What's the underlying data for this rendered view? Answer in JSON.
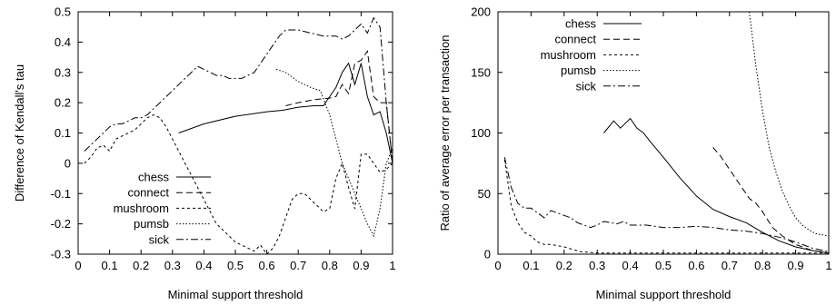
{
  "chart_data": [
    {
      "type": "line",
      "xlabel": "Minimal support threshold",
      "ylabel": "Difference of Kendall's tau",
      "xlim": [
        0,
        1
      ],
      "ylim": [
        -0.3,
        0.5
      ],
      "xticks": [
        0,
        0.1,
        0.2,
        0.3,
        0.4,
        0.5,
        0.6,
        0.7,
        0.8,
        0.9,
        1
      ],
      "xtick_labels": [
        "0",
        "0.1",
        "0.2",
        "0.3",
        "0.4",
        "0.5",
        "0.6",
        "0.7",
        "0.8",
        "0.9",
        "1"
      ],
      "yticks": [
        -0.3,
        -0.2,
        -0.1,
        0,
        0.1,
        0.2,
        0.3,
        0.4,
        0.5
      ],
      "ytick_labels": [
        "-0.3",
        "-0.2",
        "-0.1",
        "0",
        "0.1",
        "0.2",
        "0.3",
        "0.4",
        "0.5"
      ],
      "grid": false,
      "legend_position": "bottom-left",
      "series": [
        {
          "name": "chess",
          "dash": "solid",
          "x": [
            0.32,
            0.4,
            0.5,
            0.6,
            0.65,
            0.7,
            0.75,
            0.78,
            0.8,
            0.82,
            0.84,
            0.86,
            0.88,
            0.9,
            0.92,
            0.94,
            0.96,
            0.98,
            1.0
          ],
          "y": [
            0.1,
            0.13,
            0.155,
            0.17,
            0.175,
            0.185,
            0.19,
            0.19,
            0.22,
            0.25,
            0.3,
            0.33,
            0.26,
            0.33,
            0.22,
            0.16,
            0.17,
            0.1,
            0.0
          ]
        },
        {
          "name": "connect",
          "dash": "dashed",
          "x": [
            0.66,
            0.7,
            0.75,
            0.8,
            0.82,
            0.84,
            0.86,
            0.88,
            0.9,
            0.92,
            0.94,
            0.96,
            0.98,
            1.0
          ],
          "y": [
            0.19,
            0.2,
            0.21,
            0.215,
            0.22,
            0.26,
            0.23,
            0.33,
            0.34,
            0.37,
            0.22,
            0.2,
            0.2,
            0.0
          ]
        },
        {
          "name": "mushroom",
          "dash": "dotted-dash",
          "x": [
            0.02,
            0.04,
            0.06,
            0.08,
            0.1,
            0.12,
            0.14,
            0.16,
            0.18,
            0.2,
            0.22,
            0.24,
            0.26,
            0.28,
            0.3,
            0.32,
            0.34,
            0.36,
            0.38,
            0.4,
            0.42,
            0.44,
            0.46,
            0.48,
            0.5,
            0.52,
            0.54,
            0.56,
            0.58,
            0.6,
            0.62,
            0.64,
            0.66,
            0.68,
            0.7,
            0.72,
            0.74,
            0.76,
            0.78,
            0.8,
            0.82,
            0.84,
            0.86,
            0.88,
            0.9,
            0.92,
            0.94,
            0.96,
            0.98,
            1.0
          ],
          "y": [
            0.0,
            0.02,
            0.05,
            0.06,
            0.04,
            0.08,
            0.09,
            0.1,
            0.11,
            0.13,
            0.15,
            0.16,
            0.15,
            0.12,
            0.08,
            0.04,
            0.0,
            -0.04,
            -0.08,
            -0.12,
            -0.16,
            -0.2,
            -0.22,
            -0.24,
            -0.26,
            -0.27,
            -0.28,
            -0.29,
            -0.27,
            -0.3,
            -0.28,
            -0.24,
            -0.18,
            -0.12,
            -0.1,
            -0.1,
            -0.12,
            -0.14,
            -0.16,
            -0.15,
            -0.05,
            0.0,
            -0.08,
            -0.15,
            0.03,
            0.03,
            0.0,
            -0.03,
            -0.02,
            0.0
          ]
        },
        {
          "name": "pumsb",
          "dash": "dotted",
          "x": [
            0.63,
            0.66,
            0.7,
            0.74,
            0.77,
            0.8,
            0.82,
            0.84,
            0.86,
            0.88,
            0.9,
            0.92,
            0.94,
            0.96,
            0.98,
            1.0
          ],
          "y": [
            0.31,
            0.3,
            0.27,
            0.25,
            0.24,
            0.16,
            0.08,
            0.0,
            -0.05,
            -0.1,
            -0.15,
            -0.2,
            -0.24,
            -0.15,
            0.0,
            0.05
          ]
        },
        {
          "name": "sick",
          "dash": "dash-dot",
          "x": [
            0.02,
            0.04,
            0.06,
            0.08,
            0.1,
            0.12,
            0.14,
            0.16,
            0.18,
            0.2,
            0.22,
            0.24,
            0.26,
            0.28,
            0.3,
            0.32,
            0.34,
            0.36,
            0.38,
            0.4,
            0.42,
            0.44,
            0.46,
            0.48,
            0.5,
            0.52,
            0.54,
            0.56,
            0.58,
            0.6,
            0.62,
            0.64,
            0.66,
            0.7,
            0.74,
            0.78,
            0.82,
            0.84,
            0.86,
            0.88,
            0.9,
            0.92,
            0.94,
            0.96,
            0.98,
            1.0
          ],
          "y": [
            0.04,
            0.06,
            0.08,
            0.1,
            0.12,
            0.13,
            0.13,
            0.14,
            0.15,
            0.15,
            0.16,
            0.18,
            0.2,
            0.22,
            0.24,
            0.26,
            0.28,
            0.3,
            0.32,
            0.31,
            0.3,
            0.29,
            0.29,
            0.28,
            0.28,
            0.28,
            0.29,
            0.3,
            0.33,
            0.36,
            0.39,
            0.42,
            0.44,
            0.44,
            0.43,
            0.42,
            0.42,
            0.41,
            0.42,
            0.44,
            0.46,
            0.43,
            0.48,
            0.45,
            0.2,
            0.0
          ]
        }
      ]
    },
    {
      "type": "line",
      "xlabel": "Minimal support threshold",
      "ylabel": "Ratio of average error per transaction",
      "xlim": [
        0,
        1
      ],
      "ylim": [
        0,
        200
      ],
      "xticks": [
        0,
        0.1,
        0.2,
        0.3,
        0.4,
        0.5,
        0.6,
        0.7,
        0.8,
        0.9,
        1
      ],
      "xtick_labels": [
        "0",
        "0.1",
        "0.2",
        "0.3",
        "0.4",
        "0.5",
        "0.6",
        "0.7",
        "0.8",
        "0.9",
        "1"
      ],
      "yticks": [
        0,
        50,
        100,
        150,
        200
      ],
      "ytick_labels": [
        "0",
        "50",
        "100",
        "150",
        "200"
      ],
      "grid": false,
      "legend_position": "top-left",
      "series": [
        {
          "name": "chess",
          "dash": "solid",
          "x": [
            0.32,
            0.35,
            0.37,
            0.4,
            0.42,
            0.44,
            0.46,
            0.5,
            0.55,
            0.6,
            0.65,
            0.7,
            0.75,
            0.8,
            0.85,
            0.9,
            0.95,
            1.0
          ],
          "y": [
            100,
            110,
            104,
            112,
            104,
            100,
            93,
            80,
            63,
            48,
            37,
            31,
            26,
            18,
            11,
            6,
            3,
            1
          ]
        },
        {
          "name": "connect",
          "dash": "dashed",
          "x": [
            0.65,
            0.67,
            0.7,
            0.73,
            0.76,
            0.78,
            0.8,
            0.83,
            0.86,
            0.9,
            0.95,
            1.0
          ],
          "y": [
            88,
            82,
            70,
            58,
            46,
            42,
            35,
            22,
            15,
            8,
            3,
            1
          ]
        },
        {
          "name": "mushroom",
          "dash": "dotted-dash",
          "x": [
            0.02,
            0.04,
            0.06,
            0.08,
            0.1,
            0.12,
            0.14,
            0.16,
            0.18,
            0.2,
            0.25,
            0.3,
            0.4,
            0.5,
            0.6,
            0.7,
            0.8,
            0.9,
            1.0
          ],
          "y": [
            78,
            40,
            26,
            18,
            15,
            10,
            8,
            8,
            7,
            6,
            2,
            1,
            1,
            1,
            1,
            1,
            1,
            1,
            1
          ]
        },
        {
          "name": "pumsb",
          "dash": "dotted",
          "x": [
            0.76,
            0.78,
            0.8,
            0.82,
            0.84,
            0.86,
            0.88,
            0.9,
            0.92,
            0.94,
            0.96,
            0.98,
            1.0
          ],
          "y": [
            200,
            155,
            118,
            88,
            68,
            52,
            40,
            30,
            24,
            20,
            17,
            16,
            15
          ]
        },
        {
          "name": "sick",
          "dash": "dash-dot",
          "x": [
            0.02,
            0.04,
            0.06,
            0.08,
            0.1,
            0.12,
            0.14,
            0.16,
            0.18,
            0.2,
            0.22,
            0.24,
            0.26,
            0.28,
            0.3,
            0.32,
            0.34,
            0.36,
            0.38,
            0.4,
            0.45,
            0.5,
            0.55,
            0.6,
            0.65,
            0.7,
            0.75,
            0.8,
            0.85,
            0.9,
            0.95,
            1.0
          ],
          "y": [
            80,
            55,
            42,
            38,
            38,
            34,
            30,
            36,
            34,
            32,
            30,
            26,
            24,
            22,
            24,
            27,
            26,
            25,
            27,
            24,
            24,
            22,
            22,
            23,
            22,
            20,
            19,
            17,
            14,
            10,
            5,
            2
          ]
        }
      ]
    }
  ]
}
